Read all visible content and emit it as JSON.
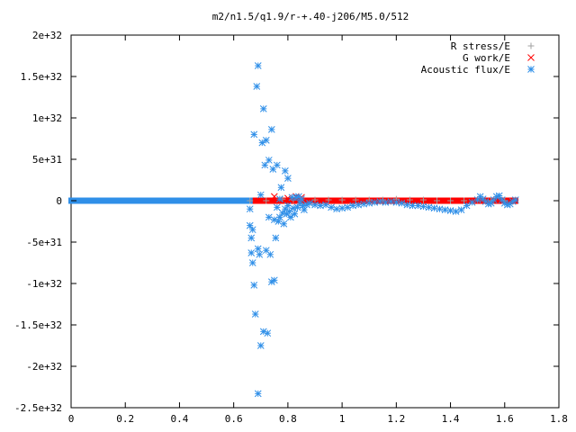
{
  "chart_data": {
    "type": "scatter",
    "title": "m2/n1.5/q1.9/r-+.40-j206/M5.0/512",
    "xlabel": "",
    "ylabel": "",
    "xlim": [
      0,
      1.8
    ],
    "ylim": [
      -2.5e+32,
      2e+32
    ],
    "x_ticks": [
      {
        "value": 0,
        "label": "0"
      },
      {
        "value": 0.2,
        "label": "0.2"
      },
      {
        "value": 0.4,
        "label": "0.4"
      },
      {
        "value": 0.6,
        "label": "0.6"
      },
      {
        "value": 0.8,
        "label": "0.8"
      },
      {
        "value": 1.0,
        "label": "1"
      },
      {
        "value": 1.2,
        "label": "1.2"
      },
      {
        "value": 1.4,
        "label": "1.4"
      },
      {
        "value": 1.6,
        "label": "1.6"
      },
      {
        "value": 1.8,
        "label": "1.8"
      }
    ],
    "y_ticks": [
      {
        "value": 2e+32,
        "label": "2e+32"
      },
      {
        "value": 1.5e+32,
        "label": "1.5e+32"
      },
      {
        "value": 1e+32,
        "label": "1e+32"
      },
      {
        "value": 5e+31,
        "label": "5e+31"
      },
      {
        "value": 0,
        "label": "0"
      },
      {
        "value": -5e+31,
        "label": "-5e+31"
      },
      {
        "value": -1e+32,
        "label": "-1e+32"
      },
      {
        "value": -1.5e+32,
        "label": "-1.5e+32"
      },
      {
        "value": -2e+32,
        "label": "-2e+32"
      },
      {
        "value": -2.5e+32,
        "label": "-2.5e+32"
      }
    ],
    "grid": false,
    "legend_position": "top-right",
    "series": [
      {
        "name": "R stress/E",
        "color": "#a0a0a0",
        "marker": "plus",
        "dense_x_range": [
          0.0,
          1.64
        ],
        "dense_y": 0,
        "points": [
          [
            0.66,
            0
          ],
          [
            0.72,
            0
          ],
          [
            0.78,
            2e+30
          ],
          [
            0.82,
            1e+30
          ],
          [
            0.85,
            2e+30
          ],
          [
            0.9,
            1e+30
          ],
          [
            0.95,
            1e+30
          ],
          [
            1.0,
            1e+30
          ],
          [
            1.05,
            1e+30
          ],
          [
            1.1,
            1e+30
          ],
          [
            1.15,
            1e+30
          ],
          [
            1.2,
            2e+30
          ],
          [
            1.25,
            1e+30
          ],
          [
            1.3,
            1e+30
          ],
          [
            1.35,
            0
          ],
          [
            1.4,
            0
          ],
          [
            1.45,
            0
          ],
          [
            1.5,
            1e+30
          ],
          [
            1.55,
            0
          ],
          [
            1.6,
            0
          ]
        ]
      },
      {
        "name": "G work/E",
        "color": "#ff0000",
        "marker": "cross",
        "dense_x_range": [
          0.66,
          1.64
        ],
        "dense_y": 0,
        "points": [
          [
            0.75,
            5e+30
          ],
          [
            0.8,
            3e+30
          ],
          [
            0.83,
            5e+30
          ],
          [
            0.85,
            4e+30
          ]
        ]
      },
      {
        "name": "Acoustic flux/E",
        "color": "#2f8fe8",
        "marker": "star",
        "dense_x_range": [
          0.0,
          0.66
        ],
        "dense_y": 0,
        "points": [
          [
            0.66,
            -1e+31
          ],
          [
            0.66,
            -3e+31
          ],
          [
            0.665,
            -4.5e+31
          ],
          [
            0.665,
            -6.3e+31
          ],
          [
            0.67,
            -3.5e+31
          ],
          [
            0.67,
            -7.5e+31
          ],
          [
            0.675,
            8e+31
          ],
          [
            0.675,
            -1.02e+32
          ],
          [
            0.68,
            -1.37e+32
          ],
          [
            0.685,
            1.38e+32
          ],
          [
            0.69,
            1.63e+32
          ],
          [
            0.69,
            -2.33e+32
          ],
          [
            0.69,
            -5.8e+31
          ],
          [
            0.695,
            -6.5e+31
          ],
          [
            0.7,
            -1.75e+32
          ],
          [
            0.7,
            7e+30
          ],
          [
            0.705,
            7e+31
          ],
          [
            0.71,
            -1.58e+32
          ],
          [
            0.71,
            1.11e+32
          ],
          [
            0.715,
            4.3e+31
          ],
          [
            0.72,
            7.3e+31
          ],
          [
            0.72,
            -6e+31
          ],
          [
            0.725,
            -1.6e+32
          ],
          [
            0.73,
            -2e+31
          ],
          [
            0.73,
            4.9e+31
          ],
          [
            0.735,
            -6.5e+31
          ],
          [
            0.74,
            -9.8e+31
          ],
          [
            0.74,
            8.6e+31
          ],
          [
            0.745,
            3.8e+31
          ],
          [
            0.75,
            -9.6e+31
          ],
          [
            0.75,
            -2.3e+31
          ],
          [
            0.755,
            -4.5e+31
          ],
          [
            0.76,
            4.3e+31
          ],
          [
            0.76,
            -8e+30
          ],
          [
            0.765,
            -2.5e+31
          ],
          [
            0.77,
            -2e+31
          ],
          [
            0.77,
            2e+30
          ],
          [
            0.775,
            1.6e+31
          ],
          [
            0.78,
            -1.5e+31
          ],
          [
            0.785,
            -2.8e+31
          ],
          [
            0.79,
            3.6e+31
          ],
          [
            0.79,
            -1e+31
          ],
          [
            0.795,
            -1.6e+31
          ],
          [
            0.8,
            2.7e+31
          ],
          [
            0.8,
            -6e+30
          ],
          [
            0.805,
            -1.3e+31
          ],
          [
            0.81,
            -2e+31
          ],
          [
            0.815,
            4e+30
          ],
          [
            0.82,
            -9e+30
          ],
          [
            0.825,
            -1.6e+31
          ],
          [
            0.83,
            4e+30
          ],
          [
            0.835,
            -8e+30
          ],
          [
            0.84,
            5e+30
          ],
          [
            0.845,
            -3e+30
          ],
          [
            0.85,
            2e+30
          ],
          [
            0.855,
            -6e+30
          ],
          [
            0.86,
            -1.1e+31
          ],
          [
            0.87,
            -5e+30
          ],
          [
            0.88,
            -3e+30
          ],
          [
            0.9,
            -5e+30
          ],
          [
            0.92,
            -6e+30
          ],
          [
            0.94,
            -5e+30
          ],
          [
            0.96,
            -8e+30
          ],
          [
            0.98,
            -1e+31
          ],
          [
            1.0,
            -9e+30
          ],
          [
            1.02,
            -8e+30
          ],
          [
            1.04,
            -6e+30
          ],
          [
            1.06,
            -5e+30
          ],
          [
            1.08,
            -4e+30
          ],
          [
            1.1,
            -3e+30
          ],
          [
            1.12,
            -2e+30
          ],
          [
            1.14,
            -1e+30
          ],
          [
            1.16,
            -2e+30
          ],
          [
            1.18,
            -1e+30
          ],
          [
            1.2,
            -2e+30
          ],
          [
            1.22,
            -3e+30
          ],
          [
            1.24,
            -5e+30
          ],
          [
            1.26,
            -6e+30
          ],
          [
            1.28,
            -6e+30
          ],
          [
            1.3,
            -7e+30
          ],
          [
            1.32,
            -8e+30
          ],
          [
            1.34,
            -9e+30
          ],
          [
            1.36,
            -1e+31
          ],
          [
            1.38,
            -1.1e+31
          ],
          [
            1.4,
            -1.2e+31
          ],
          [
            1.42,
            -1.3e+31
          ],
          [
            1.44,
            -1.1e+31
          ],
          [
            1.46,
            -6e+30
          ],
          [
            1.48,
            -2e+30
          ],
          [
            1.5,
            1e+30
          ],
          [
            1.51,
            5e+30
          ],
          [
            1.52,
            2e+30
          ],
          [
            1.53,
            -1e+30
          ],
          [
            1.54,
            -4e+30
          ],
          [
            1.55,
            -3e+30
          ],
          [
            1.56,
            1e+30
          ],
          [
            1.57,
            5e+30
          ],
          [
            1.58,
            6e+30
          ],
          [
            1.59,
            1e+30
          ],
          [
            1.6,
            -3e+30
          ],
          [
            1.61,
            -5e+30
          ],
          [
            1.62,
            -4e+30
          ],
          [
            1.63,
            -1e+30
          ],
          [
            1.64,
            1e+30
          ]
        ]
      }
    ]
  }
}
